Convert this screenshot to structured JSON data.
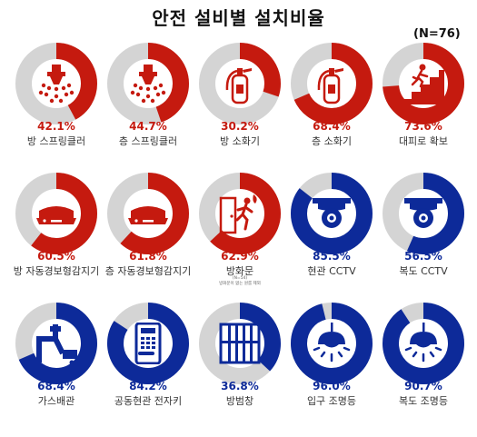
{
  "title": "안전 설비별 설치비율",
  "sample_note": "(N=76)",
  "colors": {
    "red": "#c51a0f",
    "blue": "#0d2a99",
    "gray": "#d4d4d4"
  },
  "chart_data": {
    "type": "donut",
    "title": "안전 설비별 설치비율",
    "unit": "%",
    "items": [
      {
        "label": "방 스프링클러",
        "value": 42.1,
        "pct_text": "42.1%",
        "color": "red",
        "icon": "sprinkler-icon"
      },
      {
        "label": "층 스프링클러",
        "value": 44.7,
        "pct_text": "44.7%",
        "color": "red",
        "icon": "sprinkler-icon"
      },
      {
        "label": "방 소화기",
        "value": 30.2,
        "pct_text": "30.2%",
        "color": "red",
        "icon": "fire-extinguisher-icon"
      },
      {
        "label": "층 소화기",
        "value": 68.4,
        "pct_text": "68.4%",
        "color": "red",
        "icon": "fire-extinguisher-icon"
      },
      {
        "label": "대피로 확보",
        "value": 73.6,
        "pct_text": "73.6%",
        "color": "red",
        "icon": "evacuation-stairs-icon"
      },
      {
        "label": "방 자동경보형감지기",
        "value": 60.5,
        "pct_text": "60.5%",
        "color": "red",
        "icon": "smoke-detector-icon"
      },
      {
        "label": "층 자동경보형감지기",
        "value": 61.8,
        "pct_text": "61.8%",
        "color": "red",
        "icon": "smoke-detector-icon"
      },
      {
        "label": "방화문",
        "value": 62.9,
        "pct_text": "62.9%",
        "color": "red",
        "icon": "fire-door-icon",
        "footnote": [
          "(N=54)",
          "방화문이 없는 원룸 제외"
        ]
      },
      {
        "label": "현관 CCTV",
        "value": 85.5,
        "pct_text": "85.5%",
        "color": "blue",
        "icon": "cctv-icon"
      },
      {
        "label": "복도 CCTV",
        "value": 56.5,
        "pct_text": "56.5%",
        "color": "blue",
        "icon": "cctv-icon"
      },
      {
        "label": "가스배관",
        "value": 68.4,
        "pct_text": "68.4%",
        "color": "blue",
        "icon": "gas-pipe-icon"
      },
      {
        "label": "공동현관 전자키",
        "value": 84.2,
        "pct_text": "84.2%",
        "color": "blue",
        "icon": "door-keypad-icon"
      },
      {
        "label": "방범창",
        "value": 36.8,
        "pct_text": "36.8%",
        "color": "blue",
        "icon": "window-bars-icon"
      },
      {
        "label": "입구 조명등",
        "value": 96.0,
        "pct_text": "96.0%",
        "color": "blue",
        "icon": "ceiling-lamp-icon"
      },
      {
        "label": "복도 조명등",
        "value": 90.7,
        "pct_text": "90.7%",
        "color": "blue",
        "icon": "ceiling-lamp-icon"
      }
    ]
  }
}
